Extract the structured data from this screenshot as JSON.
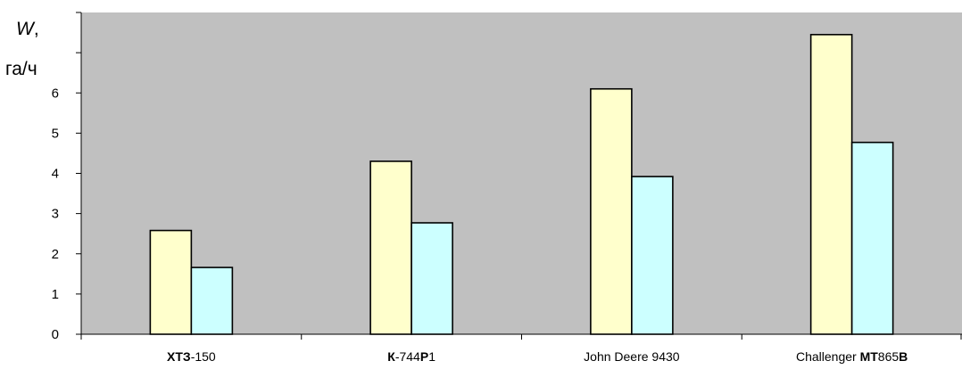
{
  "chart_data": {
    "type": "bar",
    "ylabel": {
      "symbol": "W",
      "suffix": ",",
      "unit": "га/ч"
    },
    "ylim": [
      0,
      8
    ],
    "yticks": [
      0,
      1,
      2,
      3,
      4,
      5,
      6
    ],
    "categories": [
      {
        "text": "ХТЗ-150",
        "parts": [
          {
            "t": "ХТЗ",
            "b": true
          },
          {
            "t": "-150",
            "b": false
          }
        ]
      },
      {
        "text": "К-744Р1",
        "parts": [
          {
            "t": "К",
            "b": true
          },
          {
            "t": "-744",
            "b": false
          },
          {
            "t": "Р",
            "b": true
          },
          {
            "t": "1",
            "b": false
          }
        ]
      },
      {
        "text": "John Deere 9430",
        "parts": [
          {
            "t": "John Deere 9430",
            "b": false
          }
        ]
      },
      {
        "text": "Challenger МТ865В",
        "parts": [
          {
            "t": "Challenger ",
            "b": false
          },
          {
            "t": "МТ",
            "b": true
          },
          {
            "t": "865",
            "b": false
          },
          {
            "t": "В",
            "b": true
          }
        ]
      }
    ],
    "series": [
      {
        "values": [
          2.58,
          4.3,
          6.1,
          7.45
        ],
        "color": "#ffffcc"
      },
      {
        "values": [
          1.66,
          2.77,
          3.92,
          4.77
        ],
        "color": "#ccffff"
      }
    ],
    "plot_background": "#c0c0c0",
    "bar_stroke": "#000000",
    "grid": false,
    "legend": "none"
  }
}
